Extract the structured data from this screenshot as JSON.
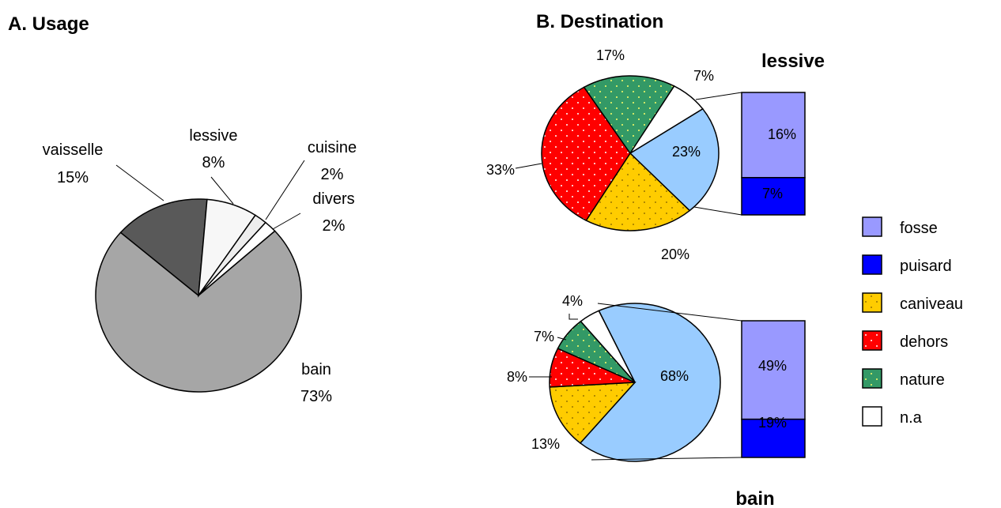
{
  "titles": {
    "a": "A. Usage",
    "b": "B. Destination"
  },
  "colors": {
    "bain": "#a6a6a6",
    "vaisselle": "#595959",
    "lessive": "#f7f7f7",
    "cuisine": "#ededed",
    "divers": "#ffffff",
    "fosse": "#9999ff",
    "puisard": "#0000ff",
    "caniveau": "#ffcc00",
    "dehors": "#ff0000",
    "nature": "#339966",
    "na": "#ffffff",
    "light_blue": "#99ccff"
  },
  "chart_data": [
    {
      "type": "pie",
      "title": "A. Usage",
      "slices": [
        {
          "name": "bain",
          "label": "bain",
          "pct_label": "73%",
          "value": 73
        },
        {
          "name": "vaisselle",
          "label": "vaisselle",
          "pct_label": "15%",
          "value": 15
        },
        {
          "name": "lessive",
          "label": "lessive",
          "pct_label": "8%",
          "value": 8
        },
        {
          "name": "cuisine",
          "label": "cuisine",
          "pct_label": "2%",
          "value": 2
        },
        {
          "name": "divers",
          "label": "divers",
          "pct_label": "2%",
          "value": 2
        }
      ]
    },
    {
      "type": "pie",
      "title": "B. Destination",
      "subtitle": "lessive",
      "slices": [
        {
          "name": "light-blue",
          "pct_label": "23%",
          "value": 23
        },
        {
          "name": "caniveau",
          "pct_label": "20%",
          "value": 20
        },
        {
          "name": "dehors",
          "pct_label": "33%",
          "value": 33
        },
        {
          "name": "nature",
          "pct_label": "17%",
          "value": 17
        },
        {
          "name": "n.a",
          "pct_label": "7%",
          "value": 7
        }
      ],
      "breakdown": [
        {
          "name": "fosse",
          "pct_label": "16%",
          "value": 16
        },
        {
          "name": "puisard",
          "pct_label": "7%",
          "value": 7
        }
      ]
    },
    {
      "type": "pie",
      "subtitle": "bain",
      "slices": [
        {
          "name": "light-blue",
          "pct_label": "68%",
          "value": 68
        },
        {
          "name": "caniveau",
          "pct_label": "13%",
          "value": 13
        },
        {
          "name": "dehors",
          "pct_label": "8%",
          "value": 8
        },
        {
          "name": "nature",
          "pct_label": "7%",
          "value": 7
        },
        {
          "name": "n.a",
          "pct_label": "4%",
          "value": 4
        }
      ],
      "breakdown": [
        {
          "name": "fosse",
          "pct_label": "49%",
          "value": 49
        },
        {
          "name": "puisard",
          "pct_label": "19%",
          "value": 19
        }
      ]
    }
  ],
  "legend": [
    {
      "key": "fosse",
      "label": "fosse",
      "pattern": "none"
    },
    {
      "key": "puisard",
      "label": "puisard",
      "pattern": "none"
    },
    {
      "key": "caniveau",
      "label": "caniveau",
      "pattern": "dots"
    },
    {
      "key": "dehors",
      "label": "dehors",
      "pattern": "dots"
    },
    {
      "key": "nature",
      "label": "nature",
      "pattern": "dots"
    },
    {
      "key": "na",
      "label": "n.a",
      "pattern": "none"
    }
  ]
}
